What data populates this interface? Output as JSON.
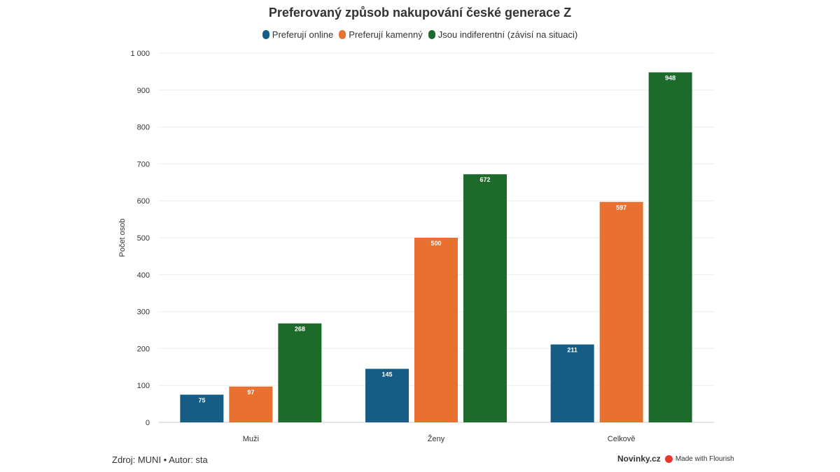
{
  "chart_data": {
    "type": "bar",
    "title": "Preferovaný způsob nakupování české generace Z",
    "ylabel": "Počet osob",
    "xlabel": "",
    "categories": [
      "Muži",
      "Ženy",
      "Celkově"
    ],
    "series": [
      {
        "name": "Preferují online",
        "color": "#155d85",
        "values": [
          75,
          145,
          211
        ]
      },
      {
        "name": "Preferují kamenný",
        "color": "#e97130",
        "values": [
          97,
          500,
          597
        ]
      },
      {
        "name": "Jsou indiferentní (závisí na situaci)",
        "color": "#1d6b2a",
        "values": [
          268,
          672,
          948
        ]
      }
    ],
    "ylim": [
      0,
      1000
    ],
    "yticks": [
      0,
      100,
      200,
      300,
      400,
      500,
      600,
      700,
      800,
      900,
      1000
    ],
    "ytick_labels": [
      "0",
      "100",
      "200",
      "300",
      "400",
      "500",
      "600",
      "700",
      "800",
      "900",
      "1 000"
    ],
    "grid": true,
    "legend_position": "top-center"
  },
  "footer": {
    "source": "Zdroj: MUNI • Autor: sta",
    "brand": "Novinky.cz",
    "made_with": "Made with Flourish"
  }
}
